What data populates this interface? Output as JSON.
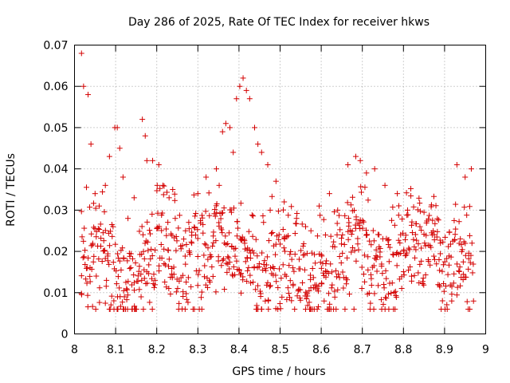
{
  "chart_data": {
    "type": "scatter",
    "title": "Day 286 of 2025, Rate Of TEC Index for receiver hkws",
    "xlabel": "GPS time / hours",
    "ylabel": "ROTI / TECUs",
    "xlim": [
      8,
      9
    ],
    "ylim": [
      0,
      0.07
    ],
    "x_ticks": [
      "8",
      "8.1",
      "8.2",
      "8.3",
      "8.4",
      "8.5",
      "8.6",
      "8.7",
      "8.8",
      "8.9",
      "9"
    ],
    "y_ticks": [
      "0",
      "0.01",
      "0.02",
      "0.03",
      "0.04",
      "0.05",
      "0.06",
      "0.07"
    ],
    "grid": true,
    "marker": "+",
    "series_color": "#d40000",
    "series": [
      {
        "name": "ROTI",
        "x": [
          8.017,
          8.022,
          8.033,
          8.04,
          8.05,
          8.06,
          8.075,
          8.085,
          8.098,
          8.104,
          8.11,
          8.118,
          8.13,
          8.145,
          8.165,
          8.172,
          8.176,
          8.19,
          8.205,
          8.215,
          8.23,
          8.245,
          8.27,
          8.3,
          8.32,
          8.345,
          8.36,
          8.368,
          8.378,
          8.386,
          8.394,
          8.402,
          8.41,
          8.418,
          8.426,
          8.438,
          8.446,
          8.455,
          8.47,
          8.49,
          8.51,
          8.54,
          8.562,
          8.575,
          8.595,
          8.62,
          8.64,
          8.665,
          8.684,
          8.695,
          8.71,
          8.73,
          8.755,
          8.785,
          8.81,
          8.84,
          8.87,
          8.89,
          8.93,
          8.95,
          8.965
        ],
        "y": [
          0.068,
          0.06,
          0.058,
          0.046,
          0.034,
          0.031,
          0.036,
          0.043,
          0.05,
          0.05,
          0.045,
          0.038,
          0.028,
          0.033,
          0.052,
          0.048,
          0.042,
          0.042,
          0.041,
          0.036,
          0.033,
          0.028,
          0.025,
          0.034,
          0.038,
          0.04,
          0.049,
          0.051,
          0.05,
          0.044,
          0.057,
          0.06,
          0.062,
          0.059,
          0.057,
          0.05,
          0.046,
          0.044,
          0.041,
          0.037,
          0.032,
          0.028,
          0.026,
          0.025,
          0.031,
          0.034,
          0.03,
          0.041,
          0.043,
          0.042,
          0.039,
          0.04,
          0.036,
          0.034,
          0.03,
          0.026,
          0.024,
          0.022,
          0.041,
          0.038,
          0.04
        ],
        "cloud": {
          "x_range": [
            8.015,
            8.97
          ],
          "y_range": [
            0.006,
            0.036
          ],
          "count": 900
        }
      }
    ]
  }
}
